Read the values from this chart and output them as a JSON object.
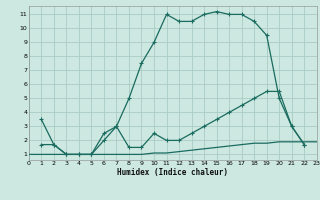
{
  "xlabel": "Humidex (Indice chaleur)",
  "background_color": "#cce8e0",
  "grid_color": "#aaccc4",
  "line_color": "#1a6b60",
  "xlim": [
    0,
    23
  ],
  "ylim": [
    0.6,
    11.6
  ],
  "xticks": [
    0,
    1,
    2,
    3,
    4,
    5,
    6,
    7,
    8,
    9,
    10,
    11,
    12,
    13,
    14,
    15,
    16,
    17,
    18,
    19,
    20,
    21,
    22,
    23
  ],
  "yticks": [
    1,
    2,
    3,
    4,
    5,
    6,
    7,
    8,
    9,
    10,
    11
  ],
  "line1_x": [
    1,
    2,
    3,
    4,
    5,
    6,
    7,
    8,
    9,
    10,
    11,
    12,
    13,
    14,
    15,
    16,
    17,
    18,
    19,
    20,
    21,
    22
  ],
  "line1_y": [
    3.5,
    1.7,
    1.0,
    1.0,
    1.0,
    2.0,
    3.0,
    5.0,
    7.5,
    9.0,
    11.0,
    10.5,
    10.5,
    11.0,
    11.2,
    11.0,
    11.0,
    10.5,
    9.5,
    5.0,
    3.0,
    1.7
  ],
  "line2_x": [
    1,
    2,
    3,
    4,
    5,
    6,
    7,
    8,
    9,
    10,
    11,
    12,
    13,
    14,
    15,
    16,
    17,
    18,
    19,
    20,
    21,
    22
  ],
  "line2_y": [
    1.7,
    1.7,
    1.0,
    1.0,
    1.0,
    2.5,
    3.0,
    1.5,
    1.5,
    2.5,
    2.0,
    2.0,
    2.5,
    3.0,
    3.5,
    4.0,
    4.5,
    5.0,
    5.5,
    5.5,
    3.0,
    1.7
  ],
  "line3_x": [
    0,
    1,
    2,
    3,
    4,
    5,
    6,
    7,
    8,
    9,
    10,
    11,
    12,
    13,
    14,
    15,
    16,
    17,
    18,
    19,
    20,
    21,
    22,
    23
  ],
  "line3_y": [
    1.0,
    1.0,
    1.0,
    1.0,
    1.0,
    1.0,
    1.0,
    1.0,
    1.0,
    1.0,
    1.1,
    1.1,
    1.2,
    1.3,
    1.4,
    1.5,
    1.6,
    1.7,
    1.8,
    1.8,
    1.9,
    1.9,
    1.9,
    1.9
  ]
}
